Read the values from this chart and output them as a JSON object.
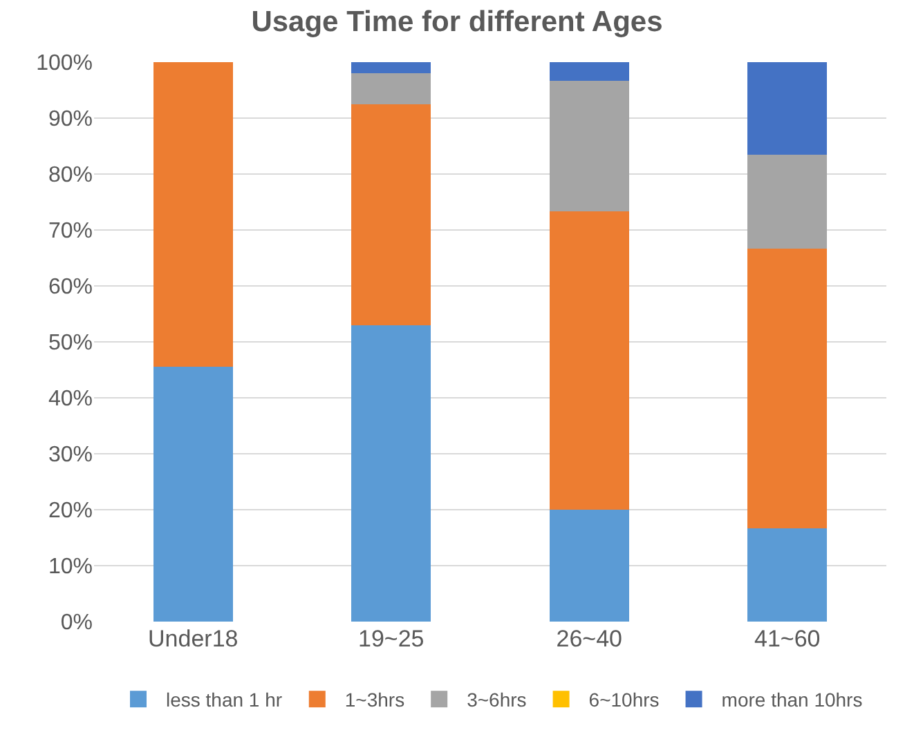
{
  "chart_data": {
    "type": "bar",
    "title": "Usage Time for different Ages",
    "stacked": true,
    "categories": [
      "Under18",
      "19~25",
      "26~40",
      "41~60"
    ],
    "series": [
      {
        "name": "less than 1 hr",
        "color": "#5b9bd5",
        "values": [
          45.5,
          53,
          20,
          16.7
        ]
      },
      {
        "name": "1~3hrs",
        "color": "#ed7d31",
        "values": [
          54.5,
          39.5,
          53.3,
          50
        ]
      },
      {
        "name": "3~6hrs",
        "color": "#a5a5a5",
        "values": [
          0,
          5.5,
          23.4,
          16.7
        ]
      },
      {
        "name": "6~10hrs",
        "color": "#ffc000",
        "values": [
          0,
          0,
          0,
          0
        ]
      },
      {
        "name": "more than 10hrs",
        "color": "#4472c4",
        "values": [
          0,
          2,
          3.3,
          16.6
        ]
      }
    ],
    "ylim": [
      0,
      100
    ],
    "yticks": [
      {
        "value": 0,
        "label": "0%"
      },
      {
        "value": 10,
        "label": "10%"
      },
      {
        "value": 20,
        "label": "20%"
      },
      {
        "value": 30,
        "label": "30%"
      },
      {
        "value": 40,
        "label": "40%"
      },
      {
        "value": 50,
        "label": "50%"
      },
      {
        "value": 60,
        "label": "60%"
      },
      {
        "value": 70,
        "label": "70%"
      },
      {
        "value": 80,
        "label": "80%"
      },
      {
        "value": 90,
        "label": "90%"
      },
      {
        "value": 100,
        "label": "100%"
      }
    ],
    "grid": "y",
    "legend": "bottom"
  }
}
